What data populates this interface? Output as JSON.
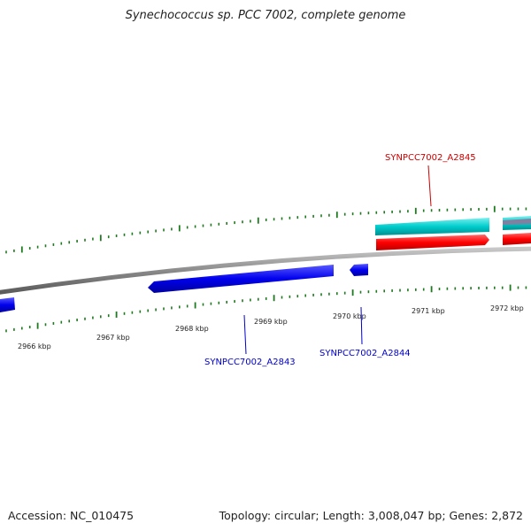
{
  "title": "Synechococcus sp. PCC 7002, complete genome",
  "footer": {
    "accession": "Accession: NC_010475",
    "summary": "Topology: circular; Length: 3,008,047 bp; Genes: 2,872"
  },
  "colors": {
    "backbone": "#8a8a8a",
    "tick": "#1e7a1e",
    "forward_cds": "#00cccc",
    "forward_gene": "#ff0000",
    "reverse_cds": "#0000ee",
    "other_feature": "#8080a0",
    "label_forward": "#cc0000",
    "label_reverse": "#0000cc"
  },
  "position_labels": [
    "2966 kbp",
    "2967 kbp",
    "2968 kbp",
    "2969 kbp",
    "2970 kbp",
    "2971 kbp",
    "2972 kbp"
  ],
  "gene_labels": {
    "a2845": "SYNPCC7002_A2845",
    "a2843": "SYNPCC7002_A2843",
    "a2844": "SYNPCC7002_A2844"
  }
}
